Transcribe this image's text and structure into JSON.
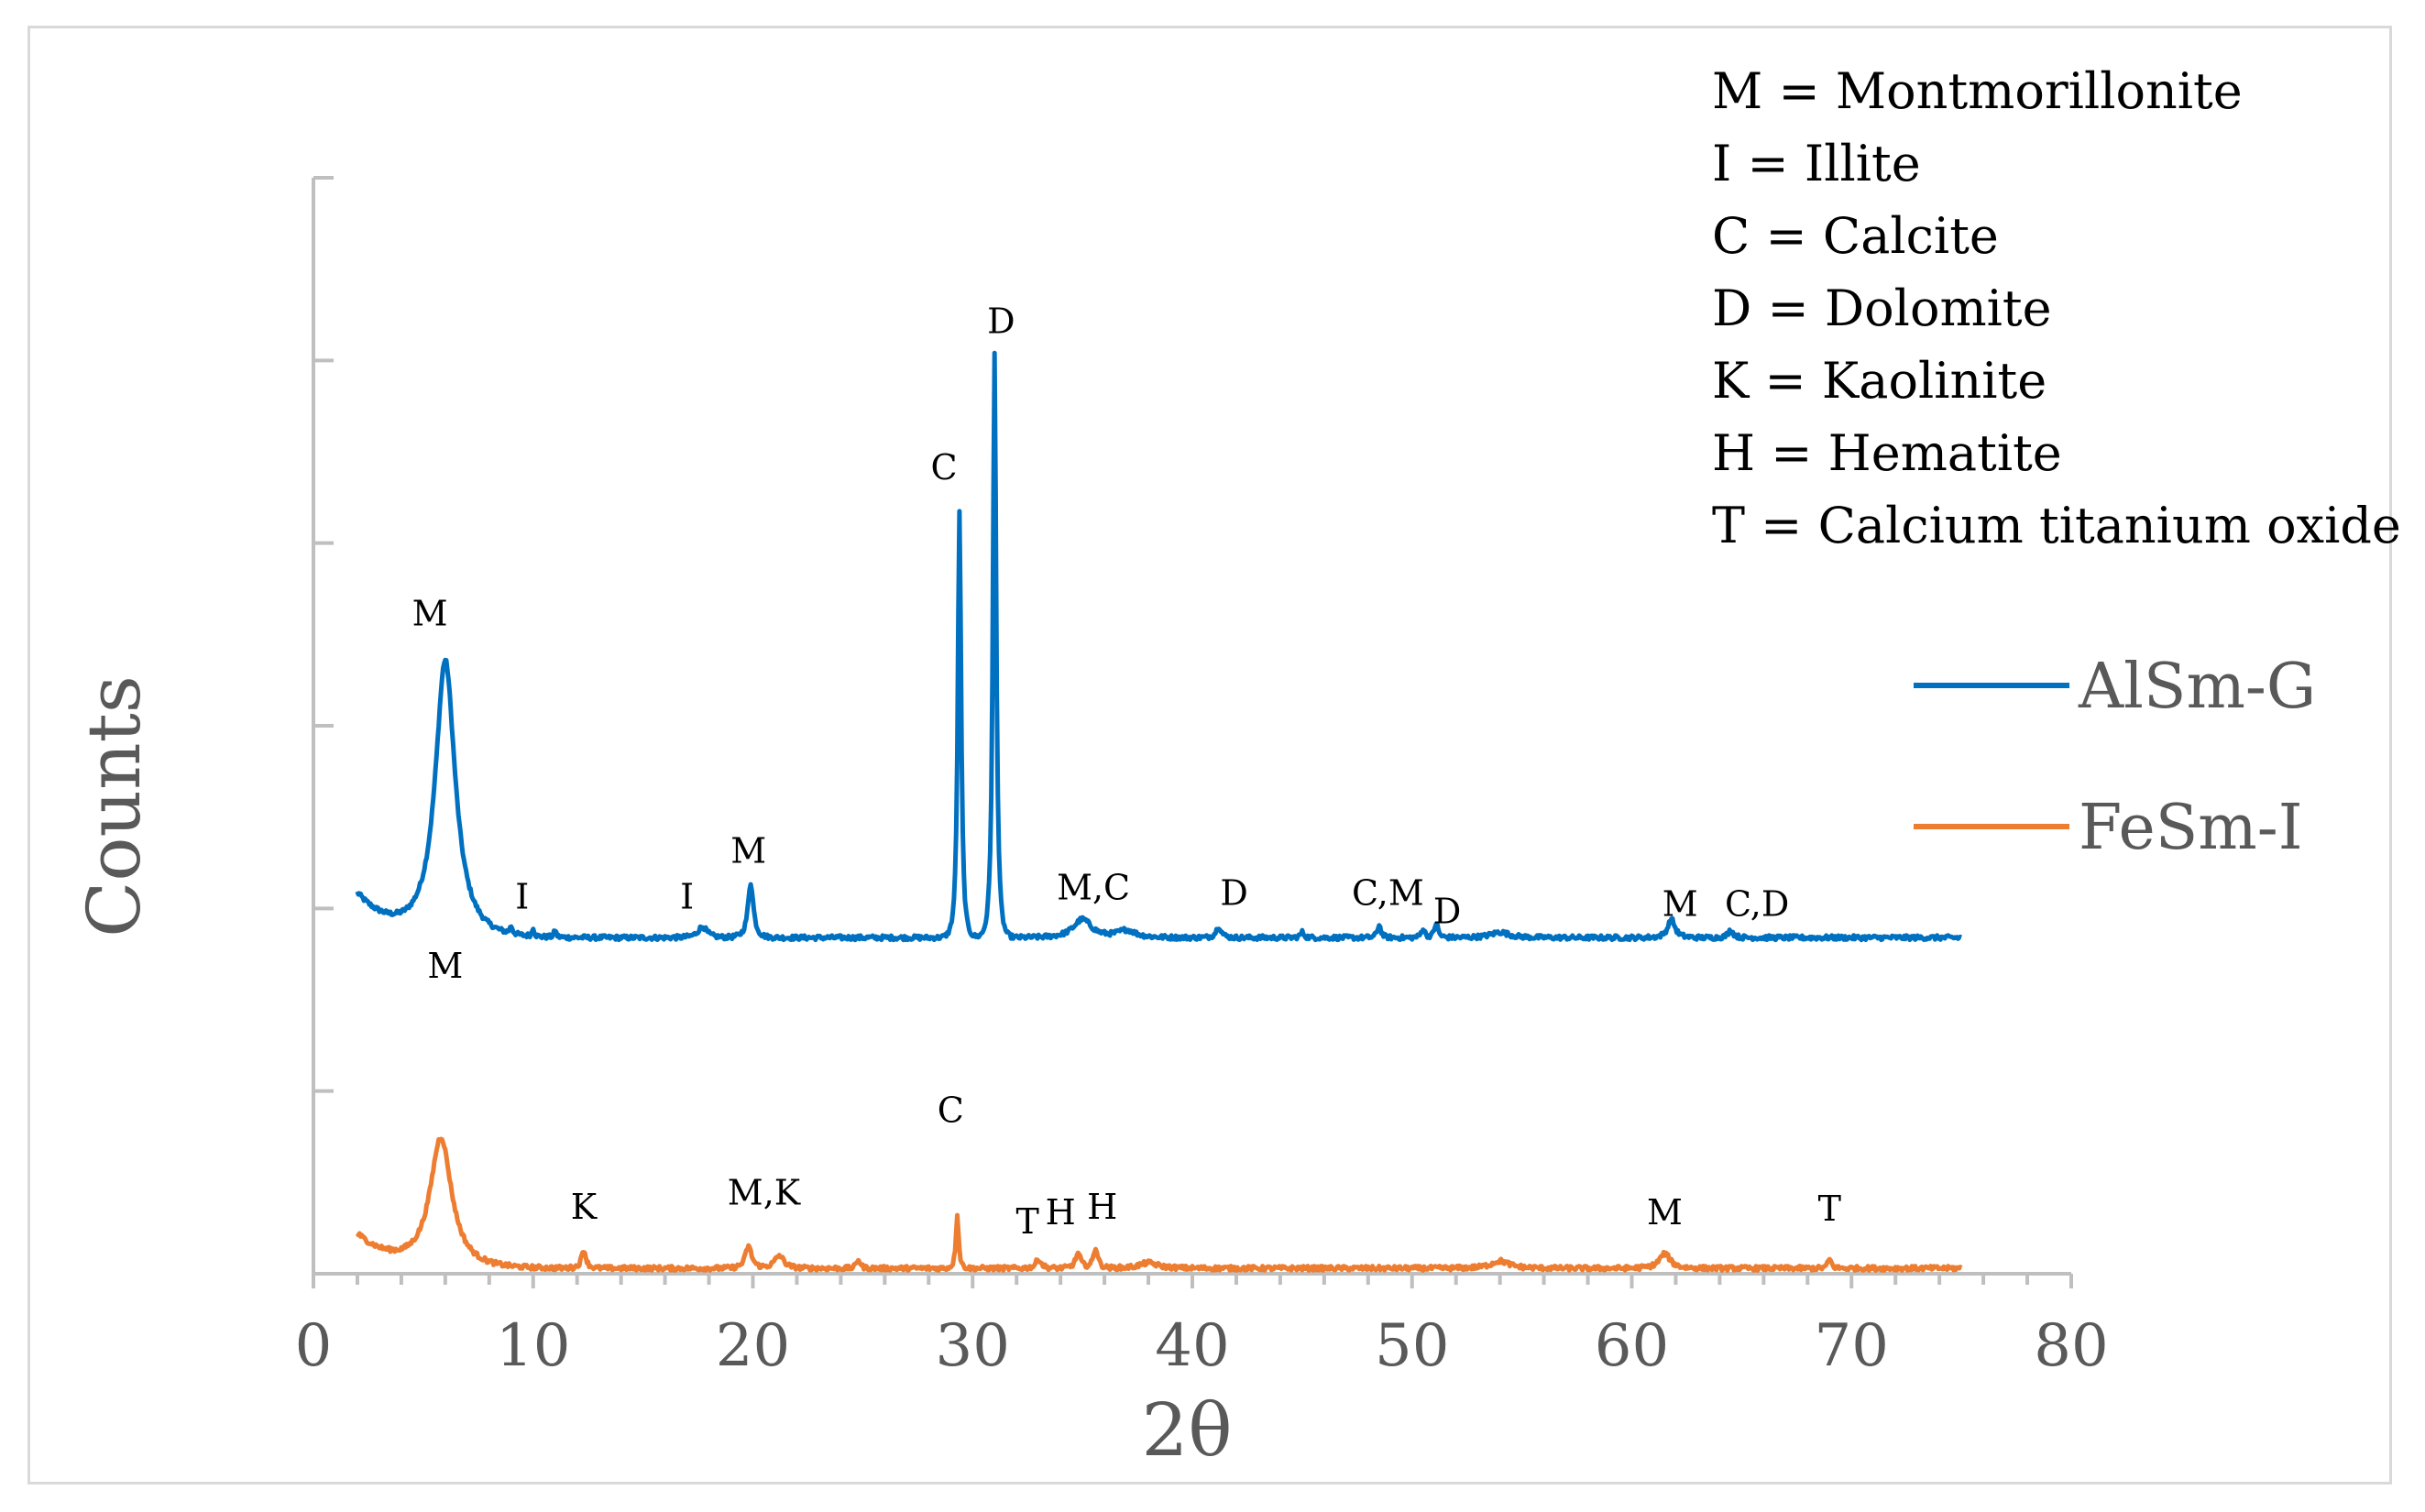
{
  "chart_data": {
    "type": "line",
    "title": "",
    "xlabel": "2θ",
    "ylabel": "Counts",
    "xlim": [
      0,
      80
    ],
    "ylim": [
      0,
      6
    ],
    "x_ticks": [
      0,
      10,
      20,
      30,
      40,
      50,
      60,
      70,
      80
    ],
    "y_ticks": [
      0,
      1,
      2,
      3,
      4,
      5,
      6
    ],
    "grid": false,
    "legend_position": "right",
    "series": [
      {
        "name": "AlSm-G",
        "color": "#0070c0",
        "baseline": 1.84,
        "x_start": 2,
        "x_end": 75,
        "start_value": 2.28,
        "peaks": [
          {
            "x": 6.0,
            "height": 1.5,
            "width": 1.1
          },
          {
            "x": 9.0,
            "height": 0.04,
            "width": 0.15
          },
          {
            "x": 10.0,
            "height": 0.05,
            "width": 0.12
          },
          {
            "x": 11.0,
            "height": 0.04,
            "width": 0.12
          },
          {
            "x": 17.7,
            "height": 0.06,
            "width": 0.5
          },
          {
            "x": 19.9,
            "height": 0.3,
            "width": 0.3
          },
          {
            "x": 29.4,
            "height": 2.34,
            "width": 0.18
          },
          {
            "x": 31.0,
            "height": 3.2,
            "width": 0.18
          },
          {
            "x": 35.0,
            "height": 0.1,
            "width": 1.0
          },
          {
            "x": 37.0,
            "height": 0.04,
            "width": 1.0
          },
          {
            "x": 41.2,
            "height": 0.06,
            "width": 0.3
          },
          {
            "x": 45.0,
            "height": 0.03,
            "width": 0.2
          },
          {
            "x": 48.5,
            "height": 0.07,
            "width": 0.2
          },
          {
            "x": 50.5,
            "height": 0.05,
            "width": 0.2
          },
          {
            "x": 51.1,
            "height": 0.08,
            "width": 0.2
          },
          {
            "x": 54.0,
            "height": 0.03,
            "width": 1.0
          },
          {
            "x": 61.8,
            "height": 0.1,
            "width": 0.4
          },
          {
            "x": 64.5,
            "height": 0.04,
            "width": 0.3
          }
        ]
      },
      {
        "name": "FeSm-I",
        "color": "#ed7d31",
        "baseline": 0.03,
        "x_start": 2,
        "x_end": 75,
        "start_value": 0.37,
        "peaks": [
          {
            "x": 5.8,
            "height": 0.7,
            "width": 1.2
          },
          {
            "x": 12.3,
            "height": 0.1,
            "width": 0.25
          },
          {
            "x": 19.8,
            "height": 0.12,
            "width": 0.35
          },
          {
            "x": 21.2,
            "height": 0.07,
            "width": 0.5
          },
          {
            "x": 24.8,
            "height": 0.05,
            "width": 0.2
          },
          {
            "x": 29.3,
            "height": 0.3,
            "width": 0.15
          },
          {
            "x": 33.0,
            "height": 0.05,
            "width": 0.3
          },
          {
            "x": 34.8,
            "height": 0.08,
            "width": 0.3
          },
          {
            "x": 35.6,
            "height": 0.11,
            "width": 0.25
          },
          {
            "x": 38.0,
            "height": 0.03,
            "width": 1.0
          },
          {
            "x": 54.0,
            "height": 0.04,
            "width": 1.0
          },
          {
            "x": 61.5,
            "height": 0.08,
            "width": 0.6
          },
          {
            "x": 69.0,
            "height": 0.05,
            "width": 0.2
          }
        ]
      }
    ],
    "annotations": [
      {
        "text": "M",
        "x": 5.3,
        "y": 3.55
      },
      {
        "text": "I",
        "x": 9.5,
        "y": 2.0
      },
      {
        "text": "I",
        "x": 17.0,
        "y": 2.0
      },
      {
        "text": "M",
        "x": 19.8,
        "y": 2.25
      },
      {
        "text": "C",
        "x": 28.7,
        "y": 4.35
      },
      {
        "text": "D",
        "x": 31.3,
        "y": 5.15
      },
      {
        "text": "M,C",
        "x": 35.5,
        "y": 2.05
      },
      {
        "text": "D",
        "x": 41.9,
        "y": 2.02
      },
      {
        "text": "C,M",
        "x": 48.9,
        "y": 2.02
      },
      {
        "text": "D",
        "x": 51.6,
        "y": 1.92
      },
      {
        "text": "M",
        "x": 62.2,
        "y": 1.96
      },
      {
        "text": "C,D",
        "x": 65.7,
        "y": 1.96
      },
      {
        "text": "M",
        "x": 6.0,
        "y": 1.62
      },
      {
        "text": "K",
        "x": 12.3,
        "y": 0.3
      },
      {
        "text": "M,K",
        "x": 20.5,
        "y": 0.38
      },
      {
        "text": "C",
        "x": 29.0,
        "y": 0.83
      },
      {
        "text": "T",
        "x": 32.5,
        "y": 0.22
      },
      {
        "text": "H",
        "x": 34.0,
        "y": 0.27
      },
      {
        "text": "H",
        "x": 35.9,
        "y": 0.3
      },
      {
        "text": "M",
        "x": 61.5,
        "y": 0.27
      },
      {
        "text": "T",
        "x": 69.0,
        "y": 0.29
      }
    ],
    "key": [
      "M = Montmorillonite",
      "I = Illite",
      "C = Calcite",
      "D = Dolomite",
      "K = Kaolinite",
      "H = Hematite",
      "T = Calcium titanium oxide"
    ]
  }
}
